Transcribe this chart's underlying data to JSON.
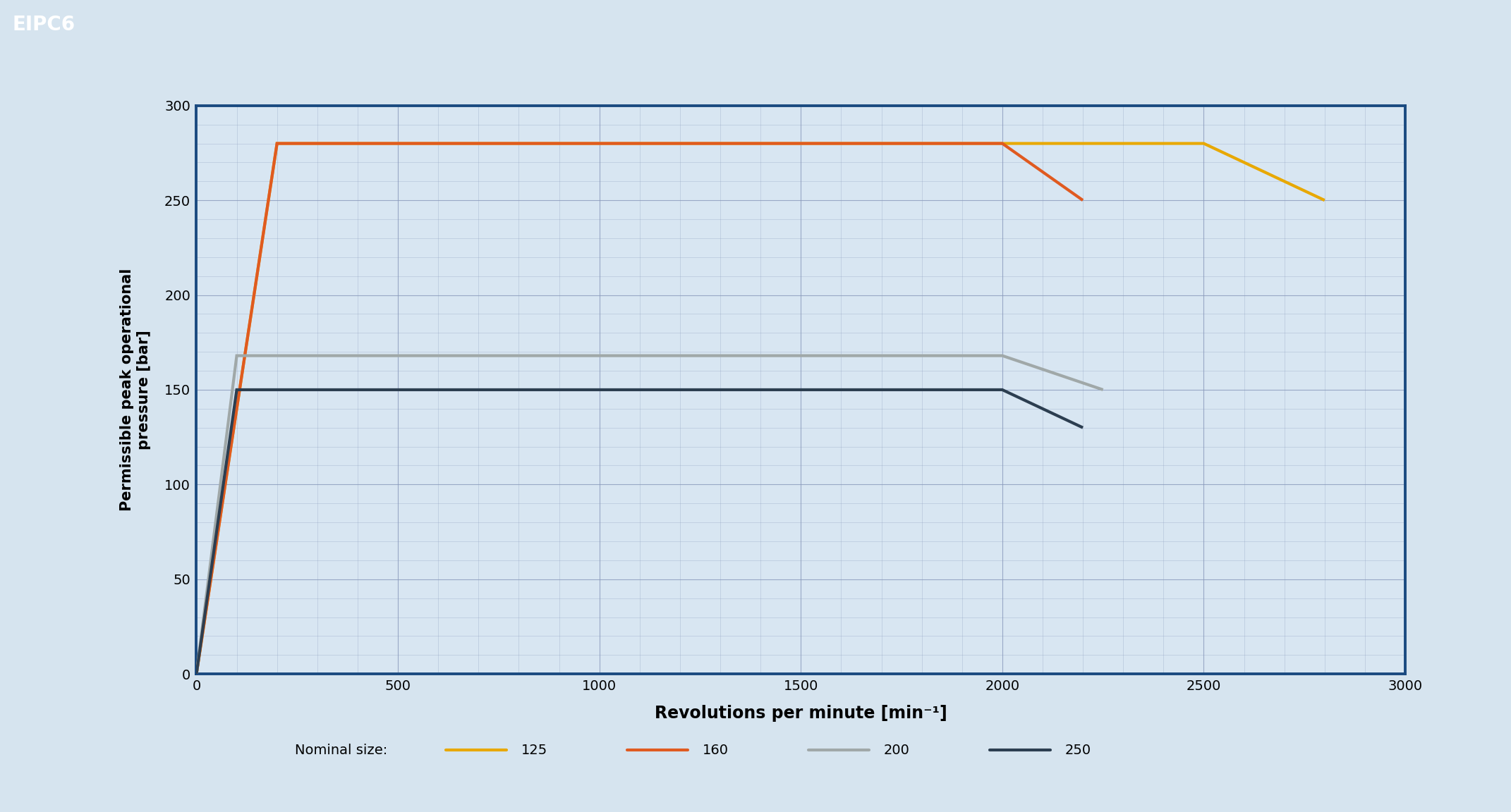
{
  "title": "EIPC6",
  "ylabel": "Permissible peak operational\npressure [bar]",
  "xlabel": "Revolutions per minute [min⁻¹]",
  "xlim": [
    0,
    3000
  ],
  "ylim": [
    0,
    300
  ],
  "xticks": [
    0,
    500,
    1000,
    1500,
    2000,
    2500,
    3000
  ],
  "yticks": [
    0,
    50,
    100,
    150,
    200,
    250,
    300
  ],
  "background_outer": "#d6e4ef",
  "background_plot": "#d8e6f2",
  "grid_color": "#8899bb",
  "border_color": "#1a4a80",
  "header_bg": "#2060a0",
  "header_text_color": "#ffffff",
  "legend_label": "Nominal size:",
  "series": [
    {
      "label": "125",
      "color": "#e8a800",
      "linewidth": 3.0,
      "x": [
        0,
        200,
        2500,
        2800
      ],
      "y": [
        0,
        280,
        280,
        250
      ]
    },
    {
      "label": "160",
      "color": "#e05a20",
      "linewidth": 3.0,
      "x": [
        0,
        200,
        2000,
        2200
      ],
      "y": [
        0,
        280,
        280,
        250
      ]
    },
    {
      "label": "200",
      "color": "#a0a8a8",
      "linewidth": 3.0,
      "x": [
        0,
        100,
        2000,
        2250
      ],
      "y": [
        0,
        168,
        168,
        150
      ]
    },
    {
      "label": "250",
      "color": "#2c3e50",
      "linewidth": 3.0,
      "x": [
        0,
        100,
        2000,
        2200
      ],
      "y": [
        0,
        150,
        150,
        130
      ]
    }
  ]
}
